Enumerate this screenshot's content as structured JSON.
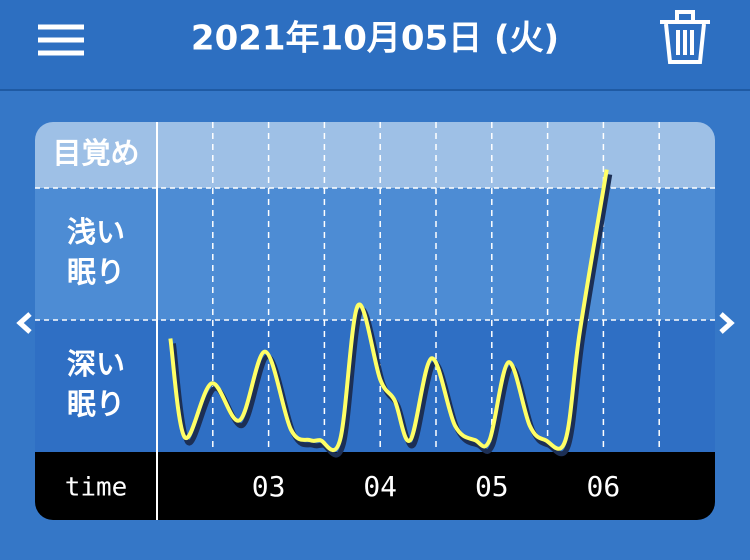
{
  "header": {
    "title": "2021年10月05日 (火)"
  },
  "chart_data": {
    "type": "line",
    "x_label": "time",
    "x": [
      2.12,
      2.25,
      2.49,
      2.74,
      2.97,
      3.2,
      3.37,
      3.46,
      3.64,
      3.8,
      4.0,
      4.13,
      4.27,
      4.46,
      4.67,
      4.85,
      4.98,
      5.15,
      5.34,
      5.48,
      5.66,
      5.79,
      6.03
    ],
    "series": [
      {
        "color": "#ffff66",
        "values": [
          0.86,
          0.11,
          0.52,
          0.24,
          0.76,
          0.17,
          0.09,
          0.09,
          0.09,
          1.11,
          0.55,
          0.39,
          0.09,
          0.71,
          0.2,
          0.09,
          0.09,
          0.68,
          0.2,
          0.09,
          0.09,
          0.92,
          2.14
        ]
      }
    ],
    "xlim": [
      2,
      7
    ],
    "xticks": [
      {
        "value": 3,
        "label": "03"
      },
      {
        "value": 4,
        "label": "04"
      },
      {
        "value": 5,
        "label": "05"
      },
      {
        "value": 6,
        "label": "06"
      }
    ],
    "xgrid": [
      2.5,
      3,
      3.5,
      4,
      4.5,
      5,
      5.5,
      6,
      6.5
    ],
    "ylim": [
      0,
      2.5
    ],
    "ybands": [
      0,
      1,
      2,
      2.5
    ],
    "band_colors": [
      "#2f6fc4",
      "#4d8cd4",
      "#9ec0e6"
    ],
    "yticks": [
      {
        "value": 0.5,
        "label": "深い\n眠り"
      },
      {
        "value": 1.5,
        "label": "浅い\n眠り"
      },
      {
        "value": 2.25,
        "label": "目覚め"
      }
    ]
  }
}
